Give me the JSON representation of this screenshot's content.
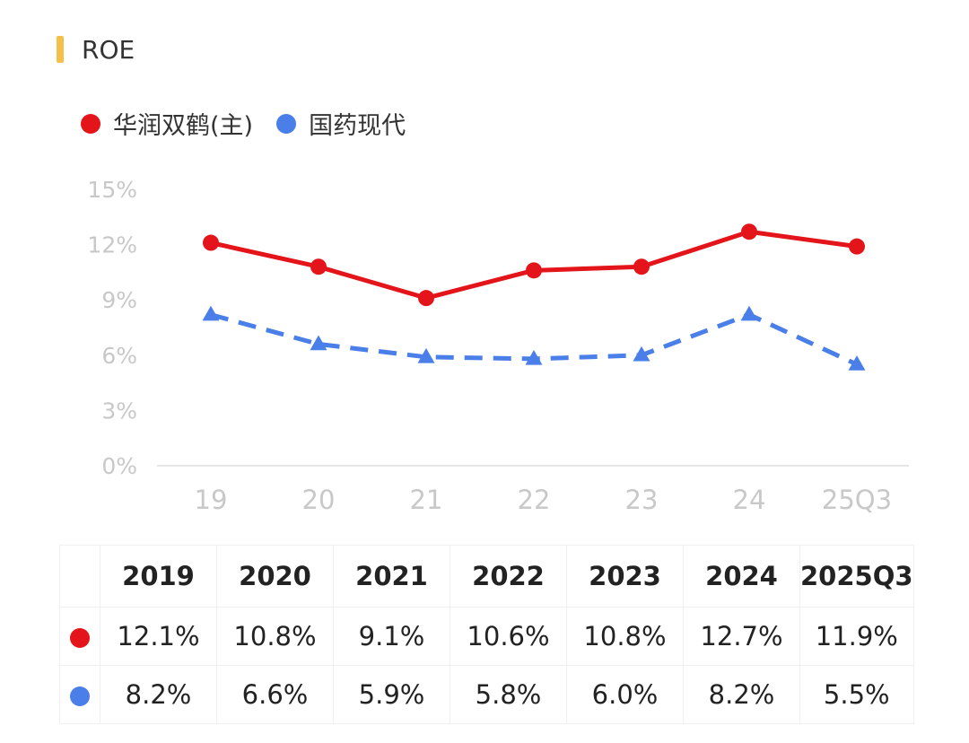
{
  "header": {
    "title": "ROE",
    "accent_color": "#f5c04a"
  },
  "legend": [
    {
      "label": "华润双鹤(主)",
      "color": "#e3151b"
    },
    {
      "label": "国药现代",
      "color": "#4a7ee8"
    }
  ],
  "chart_data": {
    "type": "line",
    "title": "ROE",
    "categories": [
      "19",
      "20",
      "21",
      "22",
      "23",
      "24",
      "25Q3"
    ],
    "y_ticks": [
      "0%",
      "3%",
      "6%",
      "9%",
      "12%",
      "15%"
    ],
    "ylim": [
      0,
      15
    ],
    "series": [
      {
        "name": "华润双鹤(主)",
        "color": "#e3151b",
        "marker": "circle",
        "dash": "solid",
        "values": [
          12.1,
          10.8,
          9.1,
          10.6,
          10.8,
          12.7,
          11.9
        ]
      },
      {
        "name": "国药现代",
        "color": "#4a7ee8",
        "marker": "triangle",
        "dash": "dashed",
        "values": [
          8.2,
          6.6,
          5.9,
          5.8,
          6.0,
          8.2,
          5.5
        ]
      }
    ]
  },
  "table": {
    "headers": [
      "2019",
      "2020",
      "2021",
      "2022",
      "2023",
      "2024",
      "2025Q3"
    ],
    "rows": [
      {
        "color": "#e3151b",
        "cells": [
          "12.1%",
          "10.8%",
          "9.1%",
          "10.6%",
          "10.8%",
          "12.7%",
          "11.9%"
        ]
      },
      {
        "color": "#4a7ee8",
        "cells": [
          "8.2%",
          "6.6%",
          "5.9%",
          "5.8%",
          "6.0%",
          "8.2%",
          "5.5%"
        ]
      }
    ]
  }
}
